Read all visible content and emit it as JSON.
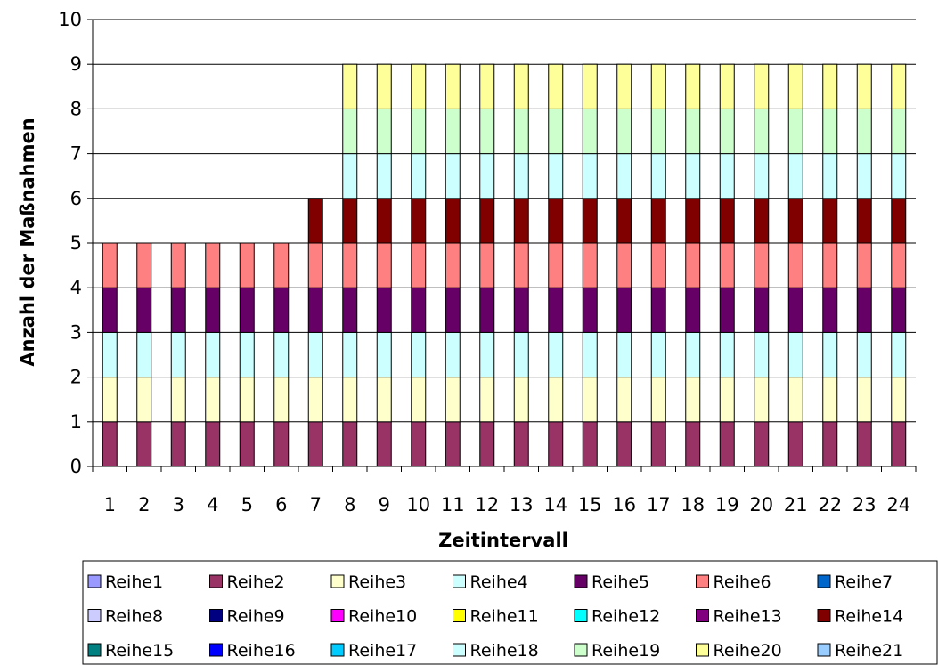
{
  "chart_data": {
    "type": "bar",
    "stacked": true,
    "title": "",
    "xlabel": "Zeitintervall",
    "ylabel": "Anzahl der Maßnahmen",
    "ylim": [
      0,
      10
    ],
    "yticks": [
      "0",
      "1",
      "2",
      "3",
      "4",
      "5",
      "6",
      "7",
      "8",
      "9",
      "10"
    ],
    "grid": true,
    "legend_position": "bottom",
    "categories": [
      "1",
      "2",
      "3",
      "4",
      "5",
      "6",
      "7",
      "8",
      "9",
      "10",
      "11",
      "12",
      "13",
      "14",
      "15",
      "16",
      "17",
      "18",
      "19",
      "20",
      "21",
      "22",
      "23",
      "24"
    ],
    "series": [
      {
        "name": "Reihe1",
        "color": "#9999FF",
        "values": [
          0,
          0,
          0,
          0,
          0,
          0,
          0,
          0,
          0,
          0,
          0,
          0,
          0,
          0,
          0,
          0,
          0,
          0,
          0,
          0,
          0,
          0,
          0,
          0
        ]
      },
      {
        "name": "Reihe2",
        "color": "#993366",
        "values": [
          1,
          1,
          1,
          1,
          1,
          1,
          1,
          1,
          1,
          1,
          1,
          1,
          1,
          1,
          1,
          1,
          1,
          1,
          1,
          1,
          1,
          1,
          1,
          1
        ]
      },
      {
        "name": "Reihe3",
        "color": "#FFFFCC",
        "values": [
          1,
          1,
          1,
          1,
          1,
          1,
          1,
          1,
          1,
          1,
          1,
          1,
          1,
          1,
          1,
          1,
          1,
          1,
          1,
          1,
          1,
          1,
          1,
          1
        ]
      },
      {
        "name": "Reihe4",
        "color": "#CCFFFF",
        "values": [
          1,
          1,
          1,
          1,
          1,
          1,
          1,
          1,
          1,
          1,
          1,
          1,
          1,
          1,
          1,
          1,
          1,
          1,
          1,
          1,
          1,
          1,
          1,
          1
        ]
      },
      {
        "name": "Reihe5",
        "color": "#660066",
        "values": [
          1,
          1,
          1,
          1,
          1,
          1,
          1,
          1,
          1,
          1,
          1,
          1,
          1,
          1,
          1,
          1,
          1,
          1,
          1,
          1,
          1,
          1,
          1,
          1
        ]
      },
      {
        "name": "Reihe6",
        "color": "#FF8080",
        "values": [
          1,
          1,
          1,
          1,
          1,
          1,
          1,
          1,
          1,
          1,
          1,
          1,
          1,
          1,
          1,
          1,
          1,
          1,
          1,
          1,
          1,
          1,
          1,
          1
        ]
      },
      {
        "name": "Reihe7",
        "color": "#0066CC",
        "values": [
          0,
          0,
          0,
          0,
          0,
          0,
          0,
          0,
          0,
          0,
          0,
          0,
          0,
          0,
          0,
          0,
          0,
          0,
          0,
          0,
          0,
          0,
          0,
          0
        ]
      },
      {
        "name": "Reihe8",
        "color": "#CCCCFF",
        "values": [
          0,
          0,
          0,
          0,
          0,
          0,
          0,
          0,
          0,
          0,
          0,
          0,
          0,
          0,
          0,
          0,
          0,
          0,
          0,
          0,
          0,
          0,
          0,
          0
        ]
      },
      {
        "name": "Reihe9",
        "color": "#000080",
        "values": [
          0,
          0,
          0,
          0,
          0,
          0,
          0,
          0,
          0,
          0,
          0,
          0,
          0,
          0,
          0,
          0,
          0,
          0,
          0,
          0,
          0,
          0,
          0,
          0
        ]
      },
      {
        "name": "Reihe10",
        "color": "#FF00FF",
        "values": [
          0,
          0,
          0,
          0,
          0,
          0,
          0,
          0,
          0,
          0,
          0,
          0,
          0,
          0,
          0,
          0,
          0,
          0,
          0,
          0,
          0,
          0,
          0,
          0
        ]
      },
      {
        "name": "Reihe11",
        "color": "#FFFF00",
        "values": [
          0,
          0,
          0,
          0,
          0,
          0,
          0,
          0,
          0,
          0,
          0,
          0,
          0,
          0,
          0,
          0,
          0,
          0,
          0,
          0,
          0,
          0,
          0,
          0
        ]
      },
      {
        "name": "Reihe12",
        "color": "#00FFFF",
        "values": [
          0,
          0,
          0,
          0,
          0,
          0,
          0,
          0,
          0,
          0,
          0,
          0,
          0,
          0,
          0,
          0,
          0,
          0,
          0,
          0,
          0,
          0,
          0,
          0
        ]
      },
      {
        "name": "Reihe13",
        "color": "#800080",
        "values": [
          0,
          0,
          0,
          0,
          0,
          0,
          0,
          0,
          0,
          0,
          0,
          0,
          0,
          0,
          0,
          0,
          0,
          0,
          0,
          0,
          0,
          0,
          0,
          0
        ]
      },
      {
        "name": "Reihe14",
        "color": "#800000",
        "values": [
          0,
          0,
          0,
          0,
          0,
          0,
          1,
          1,
          1,
          1,
          1,
          1,
          1,
          1,
          1,
          1,
          1,
          1,
          1,
          1,
          1,
          1,
          1,
          1
        ]
      },
      {
        "name": "Reihe15",
        "color": "#008080",
        "values": [
          0,
          0,
          0,
          0,
          0,
          0,
          0,
          0,
          0,
          0,
          0,
          0,
          0,
          0,
          0,
          0,
          0,
          0,
          0,
          0,
          0,
          0,
          0,
          0
        ]
      },
      {
        "name": "Reihe16",
        "color": "#0000FF",
        "values": [
          0,
          0,
          0,
          0,
          0,
          0,
          0,
          0,
          0,
          0,
          0,
          0,
          0,
          0,
          0,
          0,
          0,
          0,
          0,
          0,
          0,
          0,
          0,
          0
        ]
      },
      {
        "name": "Reihe17",
        "color": "#00CCFF",
        "values": [
          0,
          0,
          0,
          0,
          0,
          0,
          0,
          0,
          0,
          0,
          0,
          0,
          0,
          0,
          0,
          0,
          0,
          0,
          0,
          0,
          0,
          0,
          0,
          0
        ]
      },
      {
        "name": "Reihe18",
        "color": "#CCFFFF",
        "values": [
          0,
          0,
          0,
          0,
          0,
          0,
          0,
          1,
          1,
          1,
          1,
          1,
          1,
          1,
          1,
          1,
          1,
          1,
          1,
          1,
          1,
          1,
          1,
          1
        ]
      },
      {
        "name": "Reihe19",
        "color": "#CCFFCC",
        "values": [
          0,
          0,
          0,
          0,
          0,
          0,
          0,
          1,
          1,
          1,
          1,
          1,
          1,
          1,
          1,
          1,
          1,
          1,
          1,
          1,
          1,
          1,
          1,
          1
        ]
      },
      {
        "name": "Reihe20",
        "color": "#FFFF99",
        "values": [
          0,
          0,
          0,
          0,
          0,
          0,
          0,
          1,
          1,
          1,
          1,
          1,
          1,
          1,
          1,
          1,
          1,
          1,
          1,
          1,
          1,
          1,
          1,
          1
        ]
      },
      {
        "name": "Reihe21",
        "color": "#99CCFF",
        "values": [
          0,
          0,
          0,
          0,
          0,
          0,
          0,
          0,
          0,
          0,
          0,
          0,
          0,
          0,
          0,
          0,
          0,
          0,
          0,
          0,
          0,
          0,
          0,
          0
        ]
      }
    ]
  }
}
